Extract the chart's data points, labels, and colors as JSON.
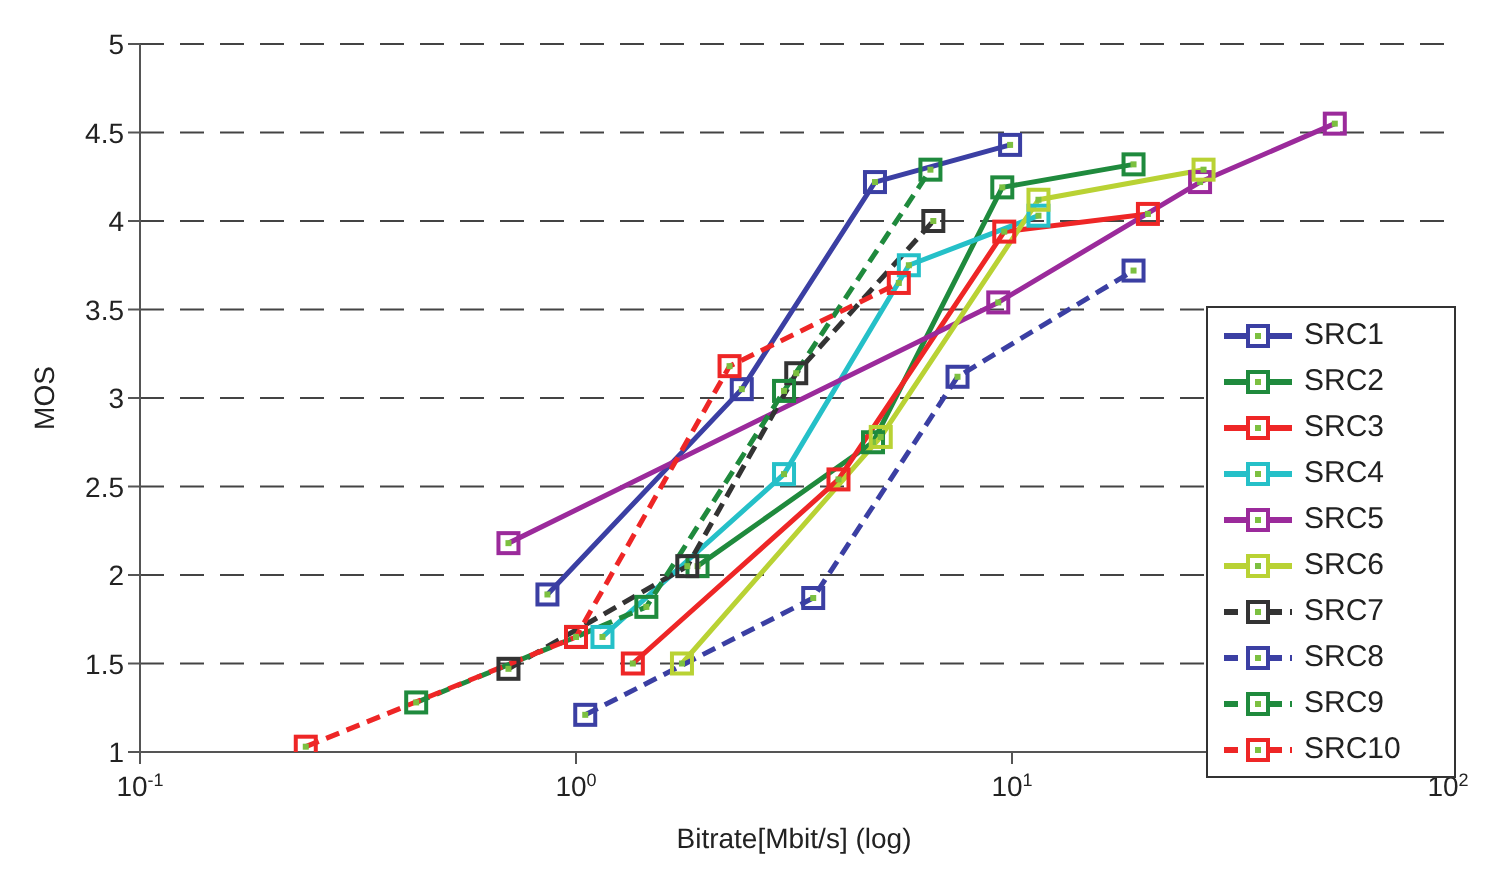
{
  "chart_data": {
    "type": "line",
    "xlabel": "Bitrate[Mbit/s] (log)",
    "ylabel": "MOS",
    "log": "x",
    "xlim": [
      0.1,
      100
    ],
    "xticks": [
      {
        "value": 0.1,
        "label": "10$^{-1}$"
      },
      {
        "value": 1,
        "label": "10$^{0}$"
      },
      {
        "value": 10,
        "label": "10$^{1}$"
      },
      {
        "value": 100,
        "label": "10$^{2}$"
      }
    ],
    "ylim": [
      1,
      5
    ],
    "yticks": [
      1,
      1.5,
      2,
      2.5,
      3,
      3.5,
      4,
      4.5,
      5
    ],
    "grid": "y",
    "legend": "bottom right",
    "marker": "square",
    "series": [
      {
        "name": "SRC1",
        "color": "#3b3fa3",
        "line_style": "solid",
        "x": [
          0.86,
          2.4,
          4.85,
          9.9
        ],
        "values": [
          1.89,
          3.05,
          4.22,
          4.43
        ]
      },
      {
        "name": "SRC2",
        "color": "#1f8a3d",
        "line_style": "solid",
        "x": [
          1.9,
          4.8,
          9.5,
          19
        ],
        "values": [
          2.05,
          2.75,
          4.19,
          4.32
        ]
      },
      {
        "name": "SRC3",
        "color": "#ee2626",
        "line_style": "solid",
        "x": [
          1.35,
          4.0,
          9.6,
          20.5
        ],
        "values": [
          1.5,
          2.54,
          3.94,
          4.04
        ]
      },
      {
        "name": "SRC4",
        "color": "#25c0c8",
        "line_style": "solid",
        "x": [
          1.15,
          3.0,
          5.8,
          11.5
        ],
        "values": [
          1.65,
          2.57,
          3.75,
          4.03
        ]
      },
      {
        "name": "SRC5",
        "color": "#9b2a9b",
        "line_style": "solid",
        "x": [
          0.7,
          9.3,
          27,
          55
        ],
        "values": [
          2.18,
          3.54,
          4.22,
          4.55
        ]
      },
      {
        "name": "SRC6",
        "color": "#b9d234",
        "line_style": "solid",
        "x": [
          1.75,
          5.0,
          11.5,
          27.5
        ],
        "values": [
          1.5,
          2.78,
          4.12,
          4.29
        ]
      },
      {
        "name": "SRC7",
        "color": "#333333",
        "line_style": "dashed",
        "x": [
          0.7,
          1.8,
          3.2,
          6.6
        ],
        "values": [
          1.47,
          2.05,
          3.14,
          4.0
        ]
      },
      {
        "name": "SRC8",
        "color": "#3b3fa3",
        "line_style": "dashed",
        "x": [
          1.05,
          3.5,
          7.5,
          19
        ],
        "values": [
          1.21,
          1.87,
          3.12,
          3.72
        ]
      },
      {
        "name": "SRC9",
        "color": "#1f8a3d",
        "line_style": "dashed",
        "x": [
          0.43,
          1.0,
          1.45,
          3.0,
          6.5
        ],
        "values": [
          1.28,
          1.65,
          1.82,
          3.04,
          4.29
        ]
      },
      {
        "name": "SRC10",
        "color": "#ee2626",
        "line_style": "dashed",
        "x": [
          0.24,
          1.0,
          2.25,
          5.5
        ],
        "values": [
          1.03,
          1.65,
          3.18,
          3.65
        ]
      }
    ]
  }
}
